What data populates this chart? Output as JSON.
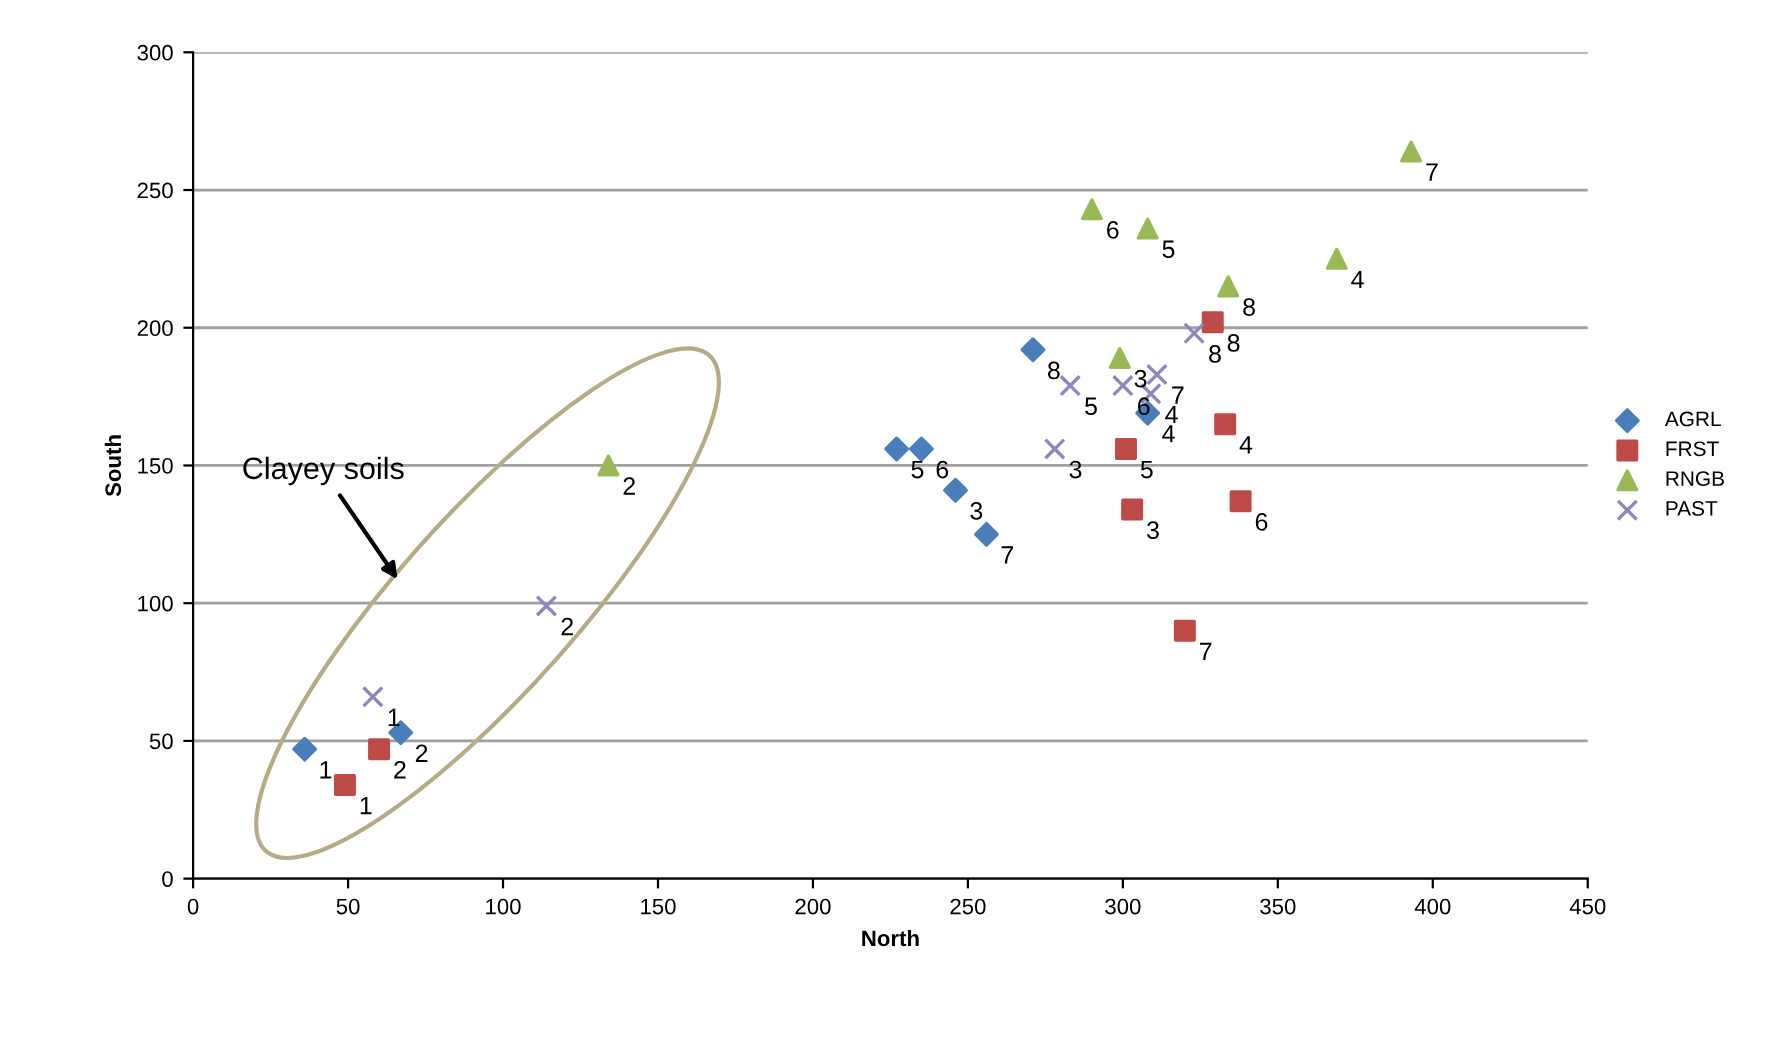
{
  "chart_data": {
    "type": "scatter",
    "xlabel": "North",
    "ylabel": "South",
    "xlim": [
      0,
      450
    ],
    "ylim": [
      0,
      300
    ],
    "xticks": [
      0,
      50,
      100,
      150,
      200,
      250,
      300,
      350,
      400,
      450
    ],
    "yticks": [
      0,
      50,
      100,
      150,
      200,
      250,
      300
    ],
    "grid": "y",
    "legend": "right",
    "annotations": [
      "Clayey soils",
      {
        "text": "1",
        "x": 36,
        "y": 47
      },
      {
        "text": "2",
        "x": 67,
        "y": 53
      },
      {
        "text": "3",
        "x": 246,
        "y": 141
      },
      {
        "text": "4",
        "x": 308,
        "y": 169
      },
      {
        "text": "5",
        "x": 227,
        "y": 156
      },
      {
        "text": "6",
        "x": 235,
        "y": 156
      },
      {
        "text": "7",
        "x": 256,
        "y": 125
      },
      {
        "text": "8",
        "x": 271,
        "y": 192
      },
      {
        "text": "1",
        "x": 49,
        "y": 34
      },
      {
        "text": "2",
        "x": 60,
        "y": 47
      },
      {
        "text": "3",
        "x": 303,
        "y": 134
      },
      {
        "text": "4",
        "x": 333,
        "y": 165
      },
      {
        "text": "5",
        "x": 301,
        "y": 156
      },
      {
        "text": "6",
        "x": 338,
        "y": 137
      },
      {
        "text": "7",
        "x": 320,
        "y": 90
      },
      {
        "text": "8",
        "x": 329,
        "y": 202
      },
      {
        "text": "2",
        "x": 134,
        "y": 150
      },
      {
        "text": "3",
        "x": 299,
        "y": 189
      },
      {
        "text": "4",
        "x": 369,
        "y": 225
      },
      {
        "text": "5",
        "x": 308,
        "y": 236
      },
      {
        "text": "6",
        "x": 290,
        "y": 243
      },
      {
        "text": "7",
        "x": 393,
        "y": 264
      },
      {
        "text": "8",
        "x": 334,
        "y": 215
      },
      {
        "text": "1",
        "x": 58,
        "y": 66
      },
      {
        "text": "2",
        "x": 114,
        "y": 99
      },
      {
        "text": "3",
        "x": 278,
        "y": 156
      },
      {
        "text": "4",
        "x": 309,
        "y": 176
      },
      {
        "text": "5",
        "x": 283,
        "y": 179
      },
      {
        "text": "6",
        "x": 300,
        "y": 179
      },
      {
        "text": "7",
        "x": 311,
        "y": 183
      },
      {
        "text": "8",
        "x": 323,
        "y": 198
      }
    ],
    "series": [
      {
        "name": "AGRL",
        "color": "#4a7ebb",
        "marker": "diamond",
        "x": [
          36,
          67,
          246,
          308,
          227,
          235,
          256,
          271
        ],
        "values": [
          47,
          53,
          141,
          169,
          156,
          156,
          125,
          192
        ]
      },
      {
        "name": "FRST",
        "color": "#be4b48",
        "marker": "square",
        "x": [
          49,
          60,
          303,
          333,
          301,
          338,
          320,
          329
        ],
        "values": [
          34,
          47,
          134,
          165,
          156,
          137,
          90,
          202
        ]
      },
      {
        "name": "RNGB",
        "color": "#98b954",
        "marker": "triangle",
        "x": [
          134,
          299,
          369,
          308,
          290,
          393,
          334
        ],
        "values": [
          150,
          189,
          225,
          236,
          243,
          264,
          215
        ]
      },
      {
        "name": "PAST",
        "color": "#8f86c0",
        "marker": "cross",
        "x": [
          58,
          114,
          278,
          309,
          283,
          300,
          311,
          323
        ],
        "values": [
          66,
          99,
          156,
          176,
          179,
          179,
          183,
          198
        ]
      }
    ]
  }
}
